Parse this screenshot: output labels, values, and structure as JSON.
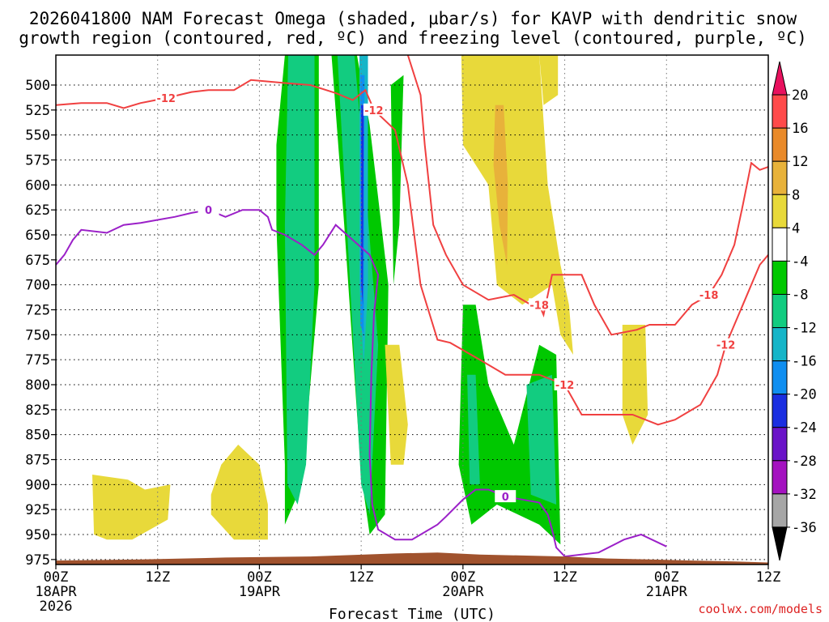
{
  "chart_data": {
    "type": "time-height",
    "title_line1": "2026041800 NAM Forecast Omega (shaded, µbar/s) for KAVP with dendritic snow",
    "title_line2": "growth region (contoured, red, ºC) and freezing level (contoured, purple, ºC)",
    "xlabel": "Forecast Time (UTC)",
    "credit": "coolwx.com/models",
    "x_range_hours": [
      0,
      84
    ],
    "y_levels": [
      500,
      525,
      550,
      575,
      600,
      625,
      650,
      675,
      700,
      725,
      750,
      775,
      800,
      825,
      850,
      875,
      900,
      925,
      950,
      975
    ],
    "y_range_mb": [
      470,
      980
    ],
    "x_ticks": [
      {
        "hour": 0,
        "label": "00Z",
        "date": "18APR",
        "year": "2026"
      },
      {
        "hour": 12,
        "label": "12Z",
        "date": "",
        "year": ""
      },
      {
        "hour": 24,
        "label": "00Z",
        "date": "19APR",
        "year": ""
      },
      {
        "hour": 36,
        "label": "12Z",
        "date": "",
        "year": ""
      },
      {
        "hour": 48,
        "label": "00Z",
        "date": "20APR",
        "year": ""
      },
      {
        "hour": 60,
        "label": "12Z",
        "date": "",
        "year": ""
      },
      {
        "hour": 72,
        "label": "00Z",
        "date": "21APR",
        "year": ""
      },
      {
        "hour": 84,
        "label": "12Z",
        "date": "",
        "year": ""
      }
    ],
    "colorbar": {
      "labels": [
        "20",
        "16",
        "12",
        "8",
        "4",
        "-4",
        "-8",
        "-12",
        "-16",
        "-20",
        "-24",
        "-28",
        "-32",
        "-36"
      ],
      "colors": [
        "#e8115e",
        "#ff4a4a",
        "#e98a2a",
        "#e8b23a",
        "#e8d93a",
        "#ffffff",
        "#00c800",
        "#12cc80",
        "#15b5c8",
        "#0f8ef0",
        "#1a2ee0",
        "#6a13c8",
        "#a412c0",
        "#a6a6a6",
        "#000000"
      ]
    },
    "omega_regions": [
      {
        "value_class": -8,
        "color": "#00c800",
        "polygon": [
          [
            27,
            470
          ],
          [
            31,
            470
          ],
          [
            31,
            700
          ],
          [
            29,
            900
          ],
          [
            27,
            940
          ],
          [
            27,
            880
          ],
          [
            26,
            640
          ],
          [
            26,
            560
          ]
        ]
      },
      {
        "value_class": -12,
        "color": "#12cc80",
        "polygon": [
          [
            27.4,
            470
          ],
          [
            30.5,
            470
          ],
          [
            30.5,
            700
          ],
          [
            29.5,
            880
          ],
          [
            28.5,
            920
          ],
          [
            27.3,
            900
          ],
          [
            27,
            640
          ]
        ]
      },
      {
        "value_class": -8,
        "color": "#00c800",
        "polygon": [
          [
            32.5,
            470
          ],
          [
            35.5,
            470
          ],
          [
            37,
            540
          ],
          [
            39.2,
            700
          ],
          [
            38.8,
            930
          ],
          [
            37,
            950
          ],
          [
            36,
            890
          ],
          [
            34,
            640
          ]
        ]
      },
      {
        "value_class": -12,
        "color": "#12cc80",
        "polygon": [
          [
            33.2,
            470
          ],
          [
            35.2,
            470
          ],
          [
            36.5,
            600
          ],
          [
            38,
            760
          ],
          [
            37,
            930
          ],
          [
            36,
            900
          ]
        ]
      },
      {
        "value_class": -16,
        "color": "#15b5c8",
        "polygon": [
          [
            35.8,
            470
          ],
          [
            36.8,
            470
          ],
          [
            36.8,
            700
          ],
          [
            36.3,
            780
          ],
          [
            35.8,
            700
          ]
        ]
      },
      {
        "value_class": -20,
        "color": "#0f8ef0",
        "polygon": [
          [
            35.9,
            490
          ],
          [
            36.4,
            490
          ],
          [
            36.3,
            750
          ],
          [
            35.9,
            740
          ]
        ]
      },
      {
        "value_class": -24,
        "color": "#1a2ee0",
        "polygon": [
          [
            36.0,
            520
          ],
          [
            36.3,
            520
          ],
          [
            36.2,
            720
          ],
          [
            36.0,
            700
          ]
        ]
      },
      {
        "value_class": -8,
        "color": "#00c800",
        "polygon": [
          [
            39.5,
            500
          ],
          [
            41,
            490
          ],
          [
            40.5,
            640
          ],
          [
            39.8,
            700
          ]
        ]
      },
      {
        "value_class": -8,
        "color": "#00c800",
        "polygon": [
          [
            48,
            720
          ],
          [
            49.5,
            720
          ],
          [
            51,
            800
          ],
          [
            54,
            860
          ],
          [
            57,
            760
          ],
          [
            59,
            770
          ],
          [
            59.5,
            960
          ],
          [
            57,
            940
          ],
          [
            52,
            920
          ],
          [
            49,
            940
          ],
          [
            47.5,
            880
          ]
        ]
      },
      {
        "value_class": -12,
        "color": "#12cc80",
        "polygon": [
          [
            48.5,
            790
          ],
          [
            49.5,
            790
          ],
          [
            50,
            900
          ],
          [
            48.8,
            900
          ]
        ]
      },
      {
        "value_class": -12,
        "color": "#12cc80",
        "polygon": [
          [
            55.5,
            800
          ],
          [
            58.5,
            790
          ],
          [
            59,
            920
          ],
          [
            56,
            910
          ]
        ]
      },
      {
        "value_class": 4,
        "color": "#e8d93a",
        "polygon": [
          [
            47.8,
            470
          ],
          [
            57,
            470
          ],
          [
            58,
            600
          ],
          [
            59.5,
            680
          ],
          [
            60.5,
            720
          ],
          [
            61,
            770
          ],
          [
            59.5,
            750
          ],
          [
            58.5,
            700
          ],
          [
            55,
            720
          ],
          [
            52,
            700
          ],
          [
            51,
            600
          ],
          [
            48,
            560
          ]
        ]
      },
      {
        "value_class": 4,
        "color": "#e8d93a",
        "polygon": [
          [
            57,
            470
          ],
          [
            59.2,
            470
          ],
          [
            59.2,
            510
          ],
          [
            57.5,
            520
          ]
        ]
      },
      {
        "value_class": 8,
        "color": "#e8b23a",
        "polygon": [
          [
            51.8,
            520
          ],
          [
            52.8,
            520
          ],
          [
            53.3,
            600
          ],
          [
            53.2,
            680
          ],
          [
            52.3,
            640
          ],
          [
            51.6,
            580
          ]
        ]
      },
      {
        "value_class": 4,
        "color": "#e8d93a",
        "polygon": [
          [
            4.3,
            890
          ],
          [
            8.5,
            895
          ],
          [
            10.5,
            905
          ],
          [
            13.5,
            900
          ],
          [
            13.2,
            935
          ],
          [
            9,
            955
          ],
          [
            6,
            955
          ],
          [
            4.5,
            950
          ]
        ]
      },
      {
        "value_class": 4,
        "color": "#e8d93a",
        "polygon": [
          [
            18.3,
            910
          ],
          [
            19.5,
            880
          ],
          [
            21.5,
            860
          ],
          [
            24,
            880
          ],
          [
            25,
            920
          ],
          [
            25,
            955
          ],
          [
            21,
            955
          ],
          [
            18.3,
            930
          ]
        ]
      },
      {
        "value_class": 4,
        "color": "#e8d93a",
        "polygon": [
          [
            38.8,
            760
          ],
          [
            40.5,
            760
          ],
          [
            41.5,
            840
          ],
          [
            41,
            880
          ],
          [
            39.5,
            880
          ]
        ]
      },
      {
        "value_class": 4,
        "color": "#e8d93a",
        "polygon": [
          [
            66.8,
            740
          ],
          [
            69.5,
            740
          ],
          [
            69.8,
            830
          ],
          [
            68,
            860
          ],
          [
            66.8,
            830
          ]
        ]
      }
    ],
    "dgz_contours": [
      {
        "label": "-12",
        "points": [
          [
            0,
            520
          ],
          [
            3,
            518
          ],
          [
            6,
            518
          ],
          [
            8,
            523
          ],
          [
            10,
            518
          ],
          [
            13,
            513
          ],
          [
            16,
            507
          ],
          [
            18,
            505
          ],
          [
            21,
            505
          ],
          [
            23,
            495
          ],
          [
            27,
            498
          ],
          [
            30,
            500
          ],
          [
            33,
            508
          ],
          [
            35,
            515
          ],
          [
            36.5,
            505
          ],
          [
            37.5,
            525
          ],
          [
            40,
            545
          ],
          [
            41.5,
            600
          ],
          [
            43,
            700
          ],
          [
            45,
            755
          ],
          [
            46.5,
            758
          ],
          [
            50,
            775
          ],
          [
            53,
            790
          ],
          [
            57,
            790
          ],
          [
            60,
            800
          ],
          [
            62,
            830
          ],
          [
            66,
            830
          ],
          [
            68,
            830
          ],
          [
            71,
            840
          ],
          [
            73,
            835
          ],
          [
            76,
            820
          ],
          [
            78,
            790
          ],
          [
            79,
            760
          ],
          [
            80,
            740
          ],
          [
            81,
            720
          ],
          [
            82,
            700
          ],
          [
            83,
            680
          ],
          [
            84,
            670
          ]
        ]
      },
      {
        "label": "-18",
        "points": [
          [
            41.5,
            470
          ],
          [
            43,
            510
          ],
          [
            43.5,
            560
          ],
          [
            44.5,
            640
          ],
          [
            46,
            670
          ],
          [
            48,
            700
          ],
          [
            51,
            715
          ],
          [
            54,
            710
          ],
          [
            56,
            720
          ],
          [
            57,
            720
          ],
          [
            57.5,
            730
          ],
          [
            58.5,
            690
          ],
          [
            62,
            690
          ],
          [
            63.5,
            720
          ],
          [
            65.5,
            750
          ],
          [
            68.5,
            745
          ],
          [
            70,
            740
          ],
          [
            73,
            740
          ],
          [
            75,
            720
          ],
          [
            77,
            710
          ],
          [
            78.5,
            690
          ],
          [
            80,
            660
          ],
          [
            81,
            620
          ],
          [
            82,
            578
          ],
          [
            83,
            585
          ],
          [
            84,
            582
          ]
        ]
      }
    ],
    "freezing_contours": [
      {
        "label": "0",
        "points": [
          [
            0,
            680
          ],
          [
            1,
            670
          ],
          [
            2,
            655
          ],
          [
            3,
            645
          ],
          [
            6,
            648
          ],
          [
            8,
            640
          ],
          [
            10,
            638
          ],
          [
            12,
            635
          ],
          [
            14,
            632
          ],
          [
            16,
            628
          ],
          [
            18,
            625
          ],
          [
            20,
            632
          ],
          [
            22,
            625
          ],
          [
            24,
            625
          ],
          [
            25,
            632
          ],
          [
            25.5,
            645
          ],
          [
            27,
            650
          ],
          [
            29,
            660
          ],
          [
            30.5,
            670
          ],
          [
            31.5,
            660
          ],
          [
            33,
            640
          ],
          [
            35,
            655
          ],
          [
            37,
            670
          ],
          [
            38,
            690
          ],
          [
            37.5,
            730
          ],
          [
            37.2,
            790
          ],
          [
            37,
            870
          ],
          [
            37.3,
            920
          ],
          [
            38,
            945
          ],
          [
            40,
            955
          ],
          [
            42,
            955
          ],
          [
            45,
            940
          ],
          [
            46,
            932
          ],
          [
            48,
            915
          ],
          [
            49.5,
            905
          ],
          [
            51,
            905
          ],
          [
            53,
            912
          ],
          [
            55,
            915
          ],
          [
            57,
            918
          ],
          [
            58,
            930
          ],
          [
            58.5,
            945
          ],
          [
            59,
            963
          ],
          [
            60,
            972
          ],
          [
            64,
            968
          ],
          [
            67,
            955
          ],
          [
            69,
            950
          ],
          [
            72,
            962
          ]
        ]
      }
    ],
    "terrain_color": "#a0522d"
  }
}
